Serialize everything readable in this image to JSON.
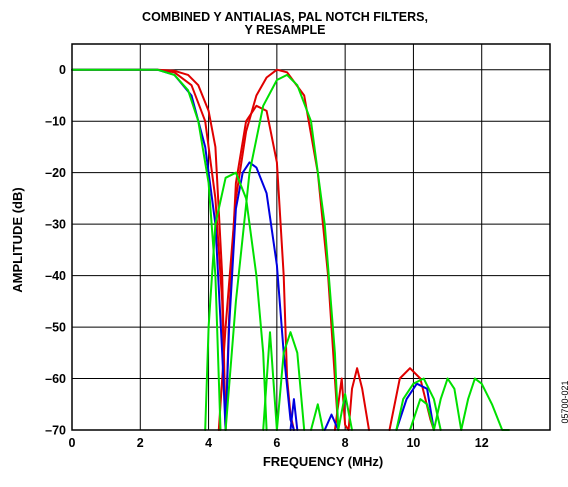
{
  "chart_data": {
    "type": "line",
    "title_lines": [
      "COMBINED Y ANTIALIAS, PAL NOTCH FILTERS,",
      "Y RESAMPLE"
    ],
    "xlabel": "FREQUENCY (MHz)",
    "ylabel": "AMPLITUDE (dB)",
    "figure_code": "05700-021",
    "xlim": [
      0,
      14
    ],
    "ylim": [
      -70,
      5
    ],
    "x_ticks": [
      0,
      2,
      4,
      6,
      8,
      10,
      12
    ],
    "y_ticks": [
      0,
      -10,
      -20,
      -30,
      -40,
      -50,
      -60,
      -70
    ],
    "x_tick_labels": [
      "0",
      "2",
      "4",
      "6",
      "8",
      "10",
      "12"
    ],
    "y_tick_labels": [
      "0",
      "–10",
      "–20",
      "–30",
      "–40",
      "–50",
      "–60",
      "–70"
    ],
    "grid": true,
    "legend": "none",
    "series": [
      {
        "color": "#e00000",
        "points": [
          [
            0,
            0
          ],
          [
            2.5,
            0
          ],
          [
            3.0,
            -0.5
          ],
          [
            3.5,
            -3
          ],
          [
            3.9,
            -10
          ],
          [
            4.2,
            -25
          ],
          [
            4.4,
            -45
          ],
          [
            4.5,
            -70
          ],
          [
            4.6,
            -48
          ],
          [
            4.8,
            -22
          ],
          [
            5.1,
            -10
          ],
          [
            5.4,
            -7
          ],
          [
            5.7,
            -8
          ],
          [
            6.0,
            -18
          ],
          [
            6.2,
            -40
          ],
          [
            6.3,
            -60
          ],
          [
            6.4,
            -67
          ],
          [
            6.5,
            -70
          ]
        ]
      },
      {
        "color": "#e00000",
        "points": [
          [
            4.3,
            -70
          ],
          [
            4.5,
            -50
          ],
          [
            4.8,
            -25
          ],
          [
            5.1,
            -12
          ],
          [
            5.4,
            -5
          ],
          [
            5.7,
            -1.5
          ],
          [
            6.0,
            0
          ],
          [
            6.3,
            -0.5
          ],
          [
            6.8,
            -5
          ],
          [
            7.2,
            -20
          ],
          [
            7.5,
            -40
          ],
          [
            7.7,
            -60
          ],
          [
            7.8,
            -70
          ]
        ]
      },
      {
        "color": "#e00000",
        "points": [
          [
            7.7,
            -70
          ],
          [
            7.9,
            -60
          ],
          [
            8.0,
            -69
          ],
          [
            8.1,
            -70
          ],
          [
            8.2,
            -62
          ],
          [
            8.35,
            -58
          ],
          [
            8.5,
            -62
          ],
          [
            8.7,
            -70
          ]
        ]
      },
      {
        "color": "#e00000",
        "points": [
          [
            9.3,
            -70
          ],
          [
            9.6,
            -60
          ],
          [
            9.9,
            -58
          ],
          [
            10.2,
            -60
          ],
          [
            10.5,
            -68
          ],
          [
            10.6,
            -70
          ]
        ]
      },
      {
        "color": "#e00000",
        "points": [
          [
            0,
            0
          ],
          [
            2.5,
            0
          ],
          [
            3.0,
            -0.2
          ],
          [
            3.4,
            -1
          ],
          [
            3.7,
            -3
          ],
          [
            4.0,
            -8
          ],
          [
            4.2,
            -15
          ],
          [
            4.4,
            -40
          ],
          [
            4.5,
            -70
          ]
        ]
      },
      {
        "color": "#0000e0",
        "points": [
          [
            0,
            0
          ],
          [
            2.5,
            0
          ],
          [
            3.0,
            -1
          ],
          [
            3.5,
            -5
          ],
          [
            3.9,
            -15
          ],
          [
            4.2,
            -30
          ],
          [
            4.4,
            -55
          ],
          [
            4.5,
            -70
          ],
          [
            4.6,
            -50
          ],
          [
            4.8,
            -27
          ],
          [
            5.0,
            -20
          ],
          [
            5.2,
            -18
          ],
          [
            5.4,
            -19
          ],
          [
            5.7,
            -24
          ],
          [
            6.0,
            -38
          ],
          [
            6.2,
            -55
          ],
          [
            6.4,
            -68
          ],
          [
            6.5,
            -70
          ]
        ]
      },
      {
        "color": "#0000e0",
        "points": [
          [
            6.4,
            -70
          ],
          [
            6.5,
            -64
          ],
          [
            6.6,
            -70
          ]
        ]
      },
      {
        "color": "#0000e0",
        "points": [
          [
            7.4,
            -70
          ],
          [
            7.6,
            -67
          ],
          [
            7.8,
            -70
          ]
        ]
      },
      {
        "color": "#0000e0",
        "points": [
          [
            9.5,
            -70
          ],
          [
            9.8,
            -64
          ],
          [
            10.1,
            -61
          ],
          [
            10.4,
            -62
          ],
          [
            10.6,
            -70
          ]
        ]
      },
      {
        "color": "#00e000",
        "points": [
          [
            0,
            0
          ],
          [
            2.5,
            0
          ],
          [
            3.0,
            -1
          ],
          [
            3.4,
            -4
          ],
          [
            3.7,
            -10
          ],
          [
            4.0,
            -22
          ],
          [
            4.2,
            -40
          ],
          [
            4.35,
            -70
          ]
        ]
      },
      {
        "color": "#00e000",
        "points": [
          [
            3.9,
            -70
          ],
          [
            4.0,
            -50
          ],
          [
            4.2,
            -30
          ],
          [
            4.5,
            -21
          ],
          [
            4.8,
            -20
          ],
          [
            5.1,
            -25
          ],
          [
            5.4,
            -40
          ],
          [
            5.6,
            -55
          ],
          [
            5.7,
            -70
          ]
        ]
      },
      {
        "color": "#00e000",
        "points": [
          [
            4.5,
            -70
          ],
          [
            4.8,
            -45
          ],
          [
            5.2,
            -20
          ],
          [
            5.6,
            -7
          ],
          [
            6.0,
            -2
          ],
          [
            6.3,
            -1
          ],
          [
            6.6,
            -3
          ],
          [
            7.0,
            -10
          ],
          [
            7.4,
            -30
          ],
          [
            7.7,
            -55
          ],
          [
            7.8,
            -70
          ]
        ]
      },
      {
        "color": "#00e000",
        "points": [
          [
            5.6,
            -70
          ],
          [
            5.8,
            -51
          ],
          [
            6.0,
            -70
          ]
        ]
      },
      {
        "color": "#00e000",
        "points": [
          [
            6.0,
            -70
          ],
          [
            6.2,
            -55
          ],
          [
            6.4,
            -51
          ],
          [
            6.6,
            -55
          ],
          [
            6.8,
            -70
          ]
        ]
      },
      {
        "color": "#00e000",
        "points": [
          [
            7.0,
            -70
          ],
          [
            7.2,
            -65
          ],
          [
            7.35,
            -70
          ]
        ]
      },
      {
        "color": "#00e000",
        "points": [
          [
            7.8,
            -70
          ],
          [
            8.0,
            -63
          ],
          [
            8.2,
            -70
          ]
        ]
      },
      {
        "color": "#00e000",
        "points": [
          [
            9.9,
            -70
          ],
          [
            10.2,
            -64
          ],
          [
            10.4,
            -65
          ],
          [
            10.6,
            -70
          ]
        ]
      },
      {
        "color": "#00e000",
        "points": [
          [
            9.5,
            -70
          ],
          [
            9.7,
            -64
          ],
          [
            10.0,
            -61
          ],
          [
            10.3,
            -60
          ],
          [
            10.6,
            -64
          ],
          [
            10.8,
            -70
          ]
        ]
      },
      {
        "color": "#00e000",
        "points": [
          [
            10.6,
            -70
          ],
          [
            10.8,
            -64
          ],
          [
            11.0,
            -60
          ],
          [
            11.2,
            -62
          ],
          [
            11.4,
            -70
          ]
        ]
      },
      {
        "color": "#00e000",
        "points": [
          [
            11.4,
            -70
          ],
          [
            11.6,
            -64
          ],
          [
            11.8,
            -60
          ],
          [
            12.0,
            -61
          ],
          [
            12.3,
            -65
          ],
          [
            12.6,
            -70
          ],
          [
            12.8,
            -70
          ]
        ]
      }
    ]
  }
}
